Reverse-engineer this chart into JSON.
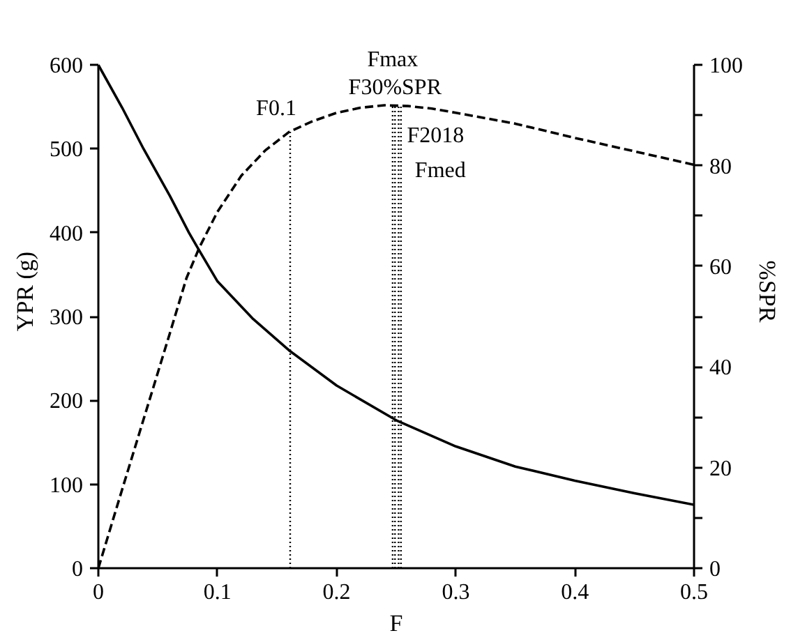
{
  "chart_data": {
    "type": "line",
    "xlabel": "F",
    "ylabel": "YPR (g)",
    "y2label": "%SPR",
    "xlim": [
      0,
      0.5
    ],
    "xticks": [
      0,
      0.1,
      0.2,
      0.3,
      0.4,
      0.5
    ],
    "ylim": [
      0,
      600
    ],
    "yticks": [
      0,
      100,
      200,
      300,
      400,
      500,
      600
    ],
    "y2lim": [
      0,
      100
    ],
    "y2ticks": [
      0,
      {
        "value": 10,
        "label": null
      },
      20,
      {
        "value": 30,
        "label": null
      },
      40,
      {
        "value": 50,
        "label": null
      },
      60,
      {
        "value": 70,
        "label": null
      },
      80,
      {
        "value": 90,
        "label": null
      },
      100
    ],
    "grid": false,
    "legend": false,
    "marker": "none",
    "series": [
      {
        "color": "#000000",
        "line_style": "dashed",
        "x": [
          0,
          0.02,
          0.04,
          0.06,
          0.074,
          0.085,
          0.1,
          0.12,
          0.14,
          0.16,
          0.18,
          0.2,
          0.22,
          0.24,
          0.26,
          0.28,
          0.3,
          0.35,
          0.4,
          0.45,
          0.5
        ],
        "values": [
          0,
          94,
          187,
          280,
          346,
          383,
          425,
          468,
          498,
          520,
          533,
          543,
          549,
          552,
          551,
          548,
          543,
          530,
          513,
          497,
          481
        ]
      },
      {
        "color": "#000000",
        "line_style": "solid",
        "axis": "y2",
        "x": [
          0,
          0.02,
          0.038,
          0.06,
          0.076,
          0.083,
          0.1,
          0.13,
          0.16,
          0.2,
          0.25,
          0.3,
          0.35,
          0.4,
          0.45,
          0.5
        ],
        "values": [
          100,
          91.5,
          83.3,
          74,
          66.7,
          63.8,
          57,
          49.5,
          43.3,
          36.3,
          29.4,
          24.2,
          20.2,
          17.4,
          14.9,
          12.6
        ]
      }
    ],
    "ref_lines": [
      {
        "axis": "x",
        "value": 0.161,
        "label": "F0.1",
        "line_style": "dotted"
      },
      {
        "axis": "x",
        "value": 0.247,
        "label": "Fmax",
        "line_style": "dotted"
      },
      {
        "axis": "x",
        "value": 0.249,
        "label": "F30%SPR",
        "line_style": "dotted"
      },
      {
        "axis": "x",
        "value": 0.252,
        "label": "F2018",
        "line_style": "dotted"
      },
      {
        "axis": "x",
        "value": 0.254,
        "label": "Fmed",
        "line_style": "dotted"
      }
    ]
  }
}
